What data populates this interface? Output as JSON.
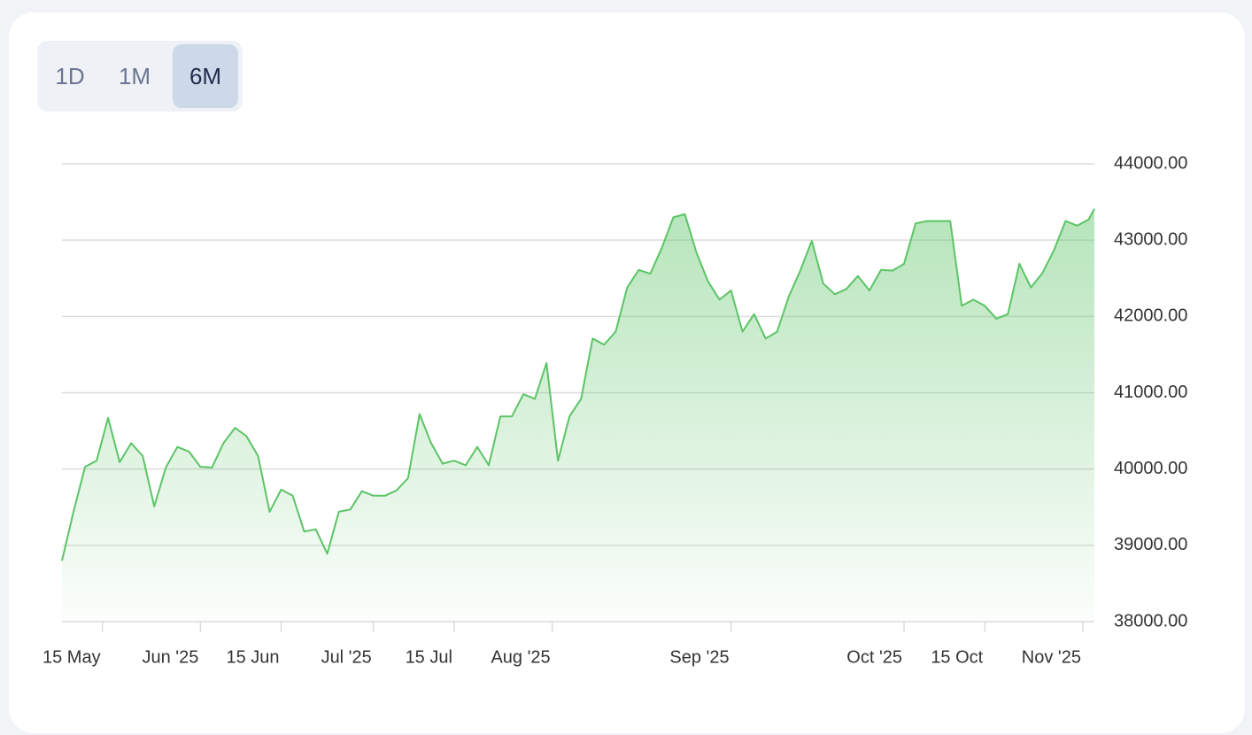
{
  "chart_data": {
    "type": "area",
    "range_buttons": [
      "1D",
      "1M",
      "6M"
    ],
    "selected_range": "6M",
    "x": [
      "2025-05-08",
      "2025-05-10",
      "2025-05-12",
      "2025-05-14",
      "2025-05-16",
      "2025-05-18",
      "2025-05-20",
      "2025-05-22",
      "2025-05-24",
      "2025-05-26",
      "2025-05-28",
      "2025-05-30",
      "2025-06-01",
      "2025-06-03",
      "2025-06-05",
      "2025-06-07",
      "2025-06-09",
      "2025-06-11",
      "2025-06-13",
      "2025-06-15",
      "2025-06-17",
      "2025-06-19",
      "2025-06-21",
      "2025-06-23",
      "2025-06-25",
      "2025-06-27",
      "2025-06-29",
      "2025-07-01",
      "2025-07-03",
      "2025-07-05",
      "2025-07-07",
      "2025-07-09",
      "2025-07-11",
      "2025-07-13",
      "2025-07-15",
      "2025-07-17",
      "2025-07-19",
      "2025-07-21",
      "2025-07-23",
      "2025-07-25",
      "2025-07-27",
      "2025-07-29",
      "2025-07-31",
      "2025-08-02",
      "2025-08-04",
      "2025-08-06",
      "2025-08-08",
      "2025-08-10",
      "2025-08-12",
      "2025-08-14",
      "2025-08-16",
      "2025-08-18",
      "2025-08-20",
      "2025-08-22",
      "2025-08-24",
      "2025-08-26",
      "2025-08-28",
      "2025-08-30",
      "2025-09-01",
      "2025-09-03",
      "2025-09-05",
      "2025-09-07",
      "2025-09-09",
      "2025-09-11",
      "2025-09-13",
      "2025-09-15",
      "2025-09-17",
      "2025-09-19",
      "2025-09-21",
      "2025-09-23",
      "2025-09-25",
      "2025-09-27",
      "2025-09-29",
      "2025-10-01",
      "2025-10-03",
      "2025-10-05",
      "2025-10-07",
      "2025-10-09",
      "2025-10-11",
      "2025-10-13",
      "2025-10-15",
      "2025-10-17",
      "2025-10-19",
      "2025-10-21",
      "2025-10-23",
      "2025-10-25",
      "2025-10-27",
      "2025-10-29",
      "2025-10-31",
      "2025-11-02",
      "2025-11-03"
    ],
    "series": [
      {
        "color": "#5cc466",
        "values": [
          38800,
          39440,
          40030,
          40110,
          40670,
          40090,
          40340,
          40170,
          39510,
          40020,
          40290,
          40230,
          40030,
          40020,
          40340,
          40540,
          40430,
          40170,
          39440,
          39730,
          39650,
          39180,
          39210,
          38890,
          39440,
          39470,
          39710,
          39650,
          39650,
          39720,
          39880,
          40720,
          40340,
          40070,
          40110,
          40050,
          40290,
          40050,
          40690,
          40690,
          40980,
          40920,
          41390,
          40110,
          40690,
          40920,
          41710,
          41630,
          41800,
          42380,
          42610,
          42560,
          42900,
          43300,
          43340,
          42840,
          42460,
          42220,
          42340,
          41800,
          42030,
          41710,
          41800,
          42260,
          42600,
          42990,
          42430,
          42290,
          42360,
          42530,
          42340,
          42610,
          42600,
          42690,
          43220,
          43250,
          43250,
          43250,
          42140,
          42220,
          42140,
          41970,
          42030,
          42690,
          42380,
          42570,
          42870,
          43250,
          43190,
          43270,
          43410
        ]
      }
    ],
    "xlim": [
      "2025-05-08",
      "2025-11-03"
    ],
    "xticks": [
      {
        "value": "2025-05-15",
        "label": "15 May"
      },
      {
        "value": "2025-06-01",
        "label": "Jun '25"
      },
      {
        "value": "2025-06-15",
        "label": "15 Jun"
      },
      {
        "value": "2025-07-01",
        "label": "Jul '25"
      },
      {
        "value": "2025-07-15",
        "label": "15 Jul"
      },
      {
        "value": "2025-08-01",
        "label": "Aug '25"
      },
      {
        "value": "2025-09-01",
        "label": "Sep '25"
      },
      {
        "value": "2025-10-01",
        "label": "Oct '25"
      },
      {
        "value": "2025-10-15",
        "label": "15 Oct"
      },
      {
        "value": "2025-11-01",
        "label": "Nov '25"
      }
    ],
    "ylim": [
      38000,
      44000
    ],
    "yticks": [
      {
        "value": 38000,
        "label": "38000.00"
      },
      {
        "value": 39000,
        "label": "39000.00"
      },
      {
        "value": 40000,
        "label": "40000.00"
      },
      {
        "value": 41000,
        "label": "41000.00"
      },
      {
        "value": 42000,
        "label": "42000.00"
      },
      {
        "value": 43000,
        "label": "43000.00"
      },
      {
        "value": 44000,
        "label": "44000.00"
      }
    ],
    "grid": true
  }
}
